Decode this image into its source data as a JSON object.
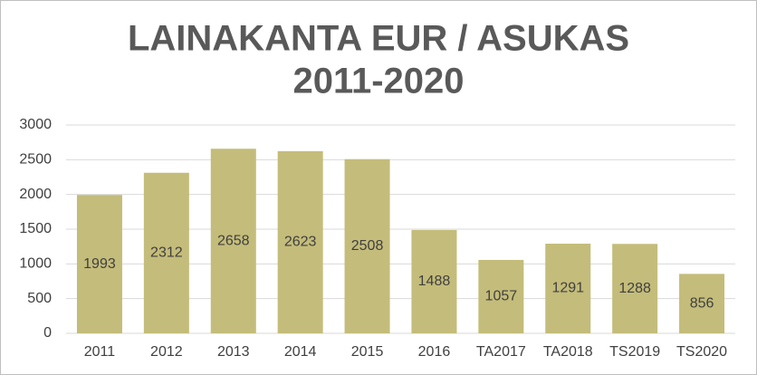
{
  "chart_data": {
    "type": "bar",
    "title": [
      "LAINAKANTA EUR / ASUKAS",
      "2011-2020"
    ],
    "categories": [
      "2011",
      "2012",
      "2013",
      "2014",
      "2015",
      "2016",
      "TA2017",
      "TA2018",
      "TS2019",
      "TS2020"
    ],
    "values": [
      1993,
      2312,
      2658,
      2623,
      2508,
      1488,
      1057,
      1291,
      1288,
      856
    ],
    "color": "#c4bc7a",
    "ylim": [
      0,
      3000
    ],
    "yticks": [
      0,
      500,
      1000,
      1500,
      2000,
      2500,
      3000
    ],
    "grid": true
  }
}
